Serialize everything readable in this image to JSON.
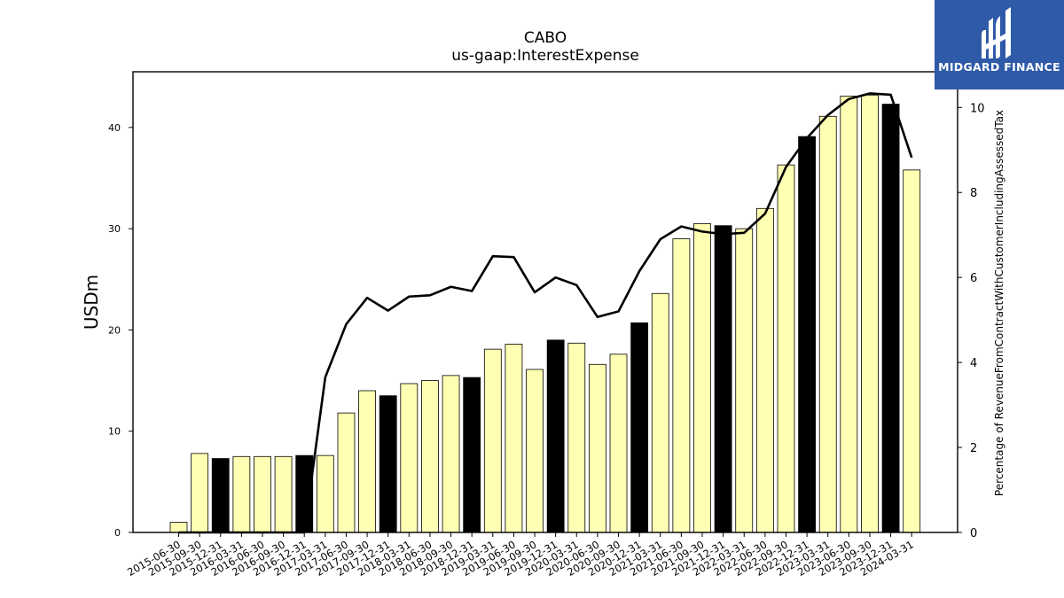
{
  "chart_data": {
    "type": "bar",
    "title": "CABO",
    "subtitle": "us-gaap:InterestExpense",
    "ylabel": "USDm",
    "ylabel_right": "Percentage of RevenueFromContractWithCustomerIncludingAssessedTax",
    "ylim": [
      0,
      45.5
    ],
    "ylim_right": [
      0,
      10.84
    ],
    "yticks": [
      0,
      10,
      20,
      30,
      40
    ],
    "yticks_right": [
      0,
      2,
      4,
      6,
      8,
      10
    ],
    "categories": [
      "2015-06-30",
      "2015-09-30",
      "2015-12-31",
      "2016-03-31",
      "2016-06-30",
      "2016-09-30",
      "2016-12-31",
      "2017-03-31",
      "2017-06-30",
      "2017-09-30",
      "2017-12-31",
      "2018-03-31",
      "2018-06-30",
      "2018-09-30",
      "2018-12-31",
      "2019-03-31",
      "2019-06-30",
      "2019-09-30",
      "2019-12-31",
      "2020-03-31",
      "2020-06-30",
      "2020-09-30",
      "2020-12-31",
      "2021-03-31",
      "2021-06-30",
      "2021-09-30",
      "2021-12-31",
      "2022-03-31",
      "2022-06-30",
      "2022-09-30",
      "2022-12-31",
      "2023-03-31",
      "2023-06-30",
      "2023-09-30",
      "2023-12-31",
      "2024-03-31"
    ],
    "series": [
      {
        "type": "bar",
        "values": [
          1.0,
          7.8,
          7.3,
          7.5,
          7.5,
          7.5,
          7.6,
          7.6,
          11.8,
          14.0,
          13.5,
          14.7,
          15.0,
          15.5,
          15.3,
          18.1,
          18.6,
          16.1,
          19.0,
          18.7,
          16.6,
          17.6,
          20.7,
          23.6,
          29.0,
          30.5,
          30.3,
          30.0,
          32.0,
          36.3,
          39.1,
          41.1,
          43.1,
          43.2,
          42.3,
          35.8
        ],
        "highlight": [
          false,
          false,
          true,
          false,
          false,
          false,
          true,
          false,
          false,
          false,
          true,
          false,
          false,
          false,
          true,
          false,
          false,
          false,
          true,
          false,
          false,
          false,
          true,
          false,
          false,
          false,
          true,
          false,
          false,
          false,
          true,
          false,
          false,
          false,
          true,
          false
        ]
      },
      {
        "type": "line",
        "axis": "right",
        "values": [
          0.0,
          0.0,
          0.0,
          0.0,
          0.0,
          0.0,
          0.0,
          3.65,
          4.9,
          5.52,
          5.22,
          5.55,
          5.58,
          5.78,
          5.68,
          6.5,
          6.48,
          5.65,
          6.0,
          5.82,
          5.07,
          5.2,
          6.15,
          6.9,
          7.2,
          7.08,
          7.02,
          7.05,
          7.5,
          8.6,
          9.28,
          9.82,
          10.2,
          10.33,
          10.3,
          8.82
        ]
      }
    ],
    "colors": {
      "bar": "#ffffb3",
      "bar_highlight": "#000000",
      "line": "#000000",
      "edge": "#000000"
    },
    "grid": false
  },
  "logo": {
    "text": "MIDGARD FINANCE",
    "background": "#2f5aa8"
  }
}
